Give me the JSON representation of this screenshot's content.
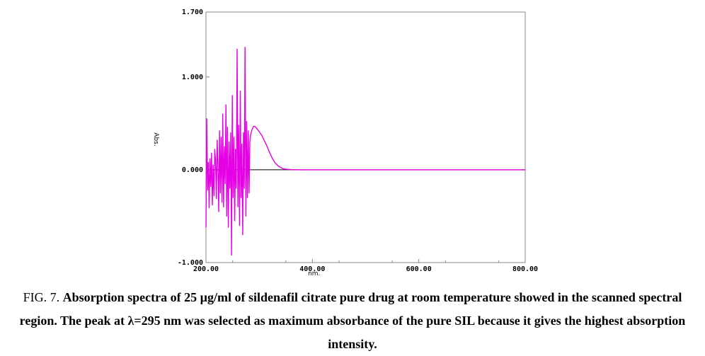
{
  "caption": {
    "prefix": "FIG. 7. ",
    "text": "Absorption spectra of 25 µg/ml of sildenafil citrate pure drug at room temperature showed in the scanned spectral region. The peak at λ=295 nm was selected as maximum absorbance of the pure SIL because it gives the highest absorption intensity."
  },
  "chart_data": {
    "type": "line",
    "title": "",
    "xlabel": "nm.",
    "ylabel": "Abs.",
    "xlim": [
      200,
      800
    ],
    "ylim": [
      -1.0,
      1.7
    ],
    "xticks": [
      "200.00",
      "400.00",
      "600.00",
      "800.00"
    ],
    "yticks": [
      "1.700",
      "1.000",
      "0.000",
      "-1.000"
    ],
    "grid": false,
    "colors": {
      "series": "#e600e6",
      "baseline": "#000000",
      "axes": "#888888"
    },
    "series": [
      {
        "values": [
          [
            200.0,
            -0.62
          ],
          [
            201.5,
            0.55
          ],
          [
            203.0,
            -0.22
          ],
          [
            204.5,
            0.08
          ],
          [
            206.0,
            -0.41
          ],
          [
            207.5,
            0.12
          ],
          [
            209.0,
            -0.18
          ],
          [
            210.5,
            0.18
          ],
          [
            212.0,
            -0.38
          ],
          [
            213.5,
            0.05
          ],
          [
            215.0,
            -0.28
          ],
          [
            216.5,
            0.22
          ],
          [
            218.0,
            0.1
          ],
          [
            219.5,
            -0.31
          ],
          [
            221.0,
            0.32
          ],
          [
            222.5,
            0.05
          ],
          [
            224.0,
            -0.45
          ],
          [
            225.5,
            0.42
          ],
          [
            227.0,
            -0.25
          ],
          [
            228.5,
            0.35
          ],
          [
            230.0,
            -0.35
          ],
          [
            231.5,
            0.6
          ],
          [
            233.0,
            -0.4
          ],
          [
            234.5,
            0.25
          ],
          [
            236.0,
            -0.15
          ],
          [
            237.5,
            0.7
          ],
          [
            239.0,
            -0.5
          ],
          [
            240.5,
            0.46
          ],
          [
            242.0,
            -0.62
          ],
          [
            243.5,
            0.3
          ],
          [
            245.0,
            -0.2
          ],
          [
            246.5,
            0.4
          ],
          [
            248.0,
            -0.92
          ],
          [
            249.5,
            0.8
          ],
          [
            251.0,
            -0.3
          ],
          [
            252.5,
            0.35
          ],
          [
            254.0,
            -0.55
          ],
          [
            255.5,
            0.22
          ],
          [
            257.0,
            -0.2
          ],
          [
            258.5,
            1.3
          ],
          [
            260.0,
            -0.4
          ],
          [
            261.5,
            0.48
          ],
          [
            263.0,
            -0.6
          ],
          [
            264.5,
            0.85
          ],
          [
            266.0,
            -0.3
          ],
          [
            267.5,
            0.28
          ],
          [
            269.0,
            -0.7
          ],
          [
            270.5,
            0.4
          ],
          [
            272.0,
            -0.2
          ],
          [
            273.5,
            1.32
          ],
          [
            275.0,
            -0.5
          ],
          [
            276.5,
            0.52
          ],
          [
            278.0,
            -0.3
          ],
          [
            279.5,
            0.42
          ],
          [
            281.0,
            -0.25
          ],
          [
            282.5,
            0.3
          ],
          [
            284.0,
            0.38
          ],
          [
            285.5,
            0.41
          ],
          [
            287.0,
            0.44
          ],
          [
            288.5,
            0.46
          ],
          [
            290.0,
            0.47
          ],
          [
            292.0,
            0.465
          ],
          [
            294.0,
            0.455
          ],
          [
            296.0,
            0.44
          ],
          [
            300.0,
            0.41
          ],
          [
            305.0,
            0.37
          ],
          [
            310.0,
            0.31
          ],
          [
            315.0,
            0.25
          ],
          [
            320.0,
            0.18
          ],
          [
            325.0,
            0.12
          ],
          [
            330.0,
            0.075
          ],
          [
            335.0,
            0.045
          ],
          [
            340.0,
            0.025
          ],
          [
            345.0,
            0.012
          ],
          [
            350.0,
            0.006
          ],
          [
            360.0,
            0.002
          ],
          [
            380.0,
            0.0
          ],
          [
            400.0,
            0.0
          ],
          [
            500.0,
            0.0
          ],
          [
            600.0,
            0.0
          ],
          [
            700.0,
            0.0
          ],
          [
            800.0,
            0.0
          ]
        ]
      }
    ]
  }
}
